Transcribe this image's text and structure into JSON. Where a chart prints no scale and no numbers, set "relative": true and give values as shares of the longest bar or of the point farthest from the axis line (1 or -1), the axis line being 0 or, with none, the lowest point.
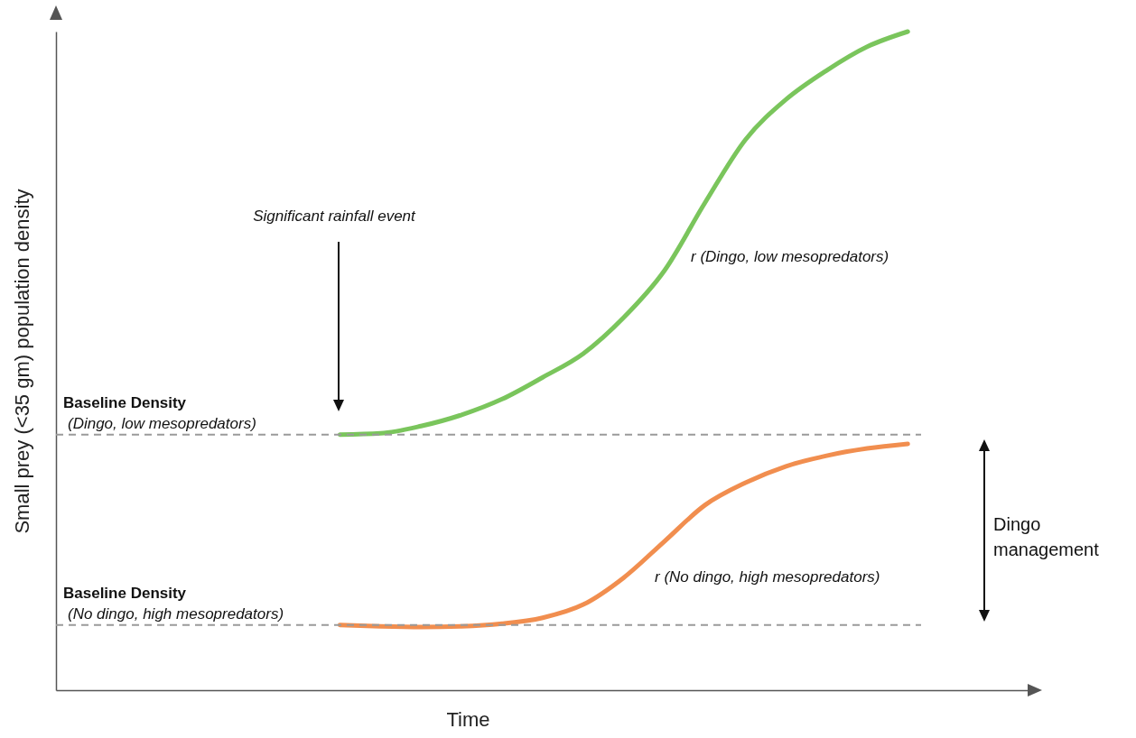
{
  "chart_data": {
    "type": "line",
    "relative": true,
    "xlabel": "Time",
    "ylabel": "Small prey (<35 gm) population density",
    "categories": [
      null,
      null,
      null,
      null,
      null,
      null,
      null,
      null,
      null,
      null,
      null,
      null,
      null,
      null,
      null,
      null,
      null,
      null,
      null,
      null,
      null,
      null,
      null,
      null,
      null
    ],
    "series": [
      {
        "name": "r (Dingo, low mesopredators)",
        "color": "#6cbf4a",
        "values": [
          null,
          null,
          null,
          null,
          null,
          null,
          null,
          0.388,
          0.39,
          0.401,
          0.418,
          0.442,
          0.475,
          0.511,
          0.566,
          0.637,
          0.74,
          0.836,
          0.897,
          0.941,
          0.977,
          1.0,
          null,
          null,
          null
        ]
      },
      {
        "name": "r (No dingo, high mesopredators)",
        "color": "#f0823c",
        "values": [
          null,
          null,
          null,
          null,
          null,
          null,
          null,
          0.099,
          0.097,
          0.096,
          0.097,
          0.101,
          0.11,
          0.13,
          0.171,
          0.226,
          0.281,
          0.315,
          0.34,
          0.356,
          0.367,
          0.374,
          null,
          null,
          null
        ]
      }
    ],
    "ref_lines": [
      {
        "axis": "y",
        "value": 0.388,
        "label": "Baseline Density",
        "color": "#9a9a9a",
        "line_style": "dashed"
      },
      {
        "axis": "y",
        "value": 0.099,
        "label": "Baseline Density",
        "color": "#9a9a9a",
        "line_style": "dashed"
      }
    ],
    "annotations": [
      "(Dingo, low mesopredators)",
      "(No dingo, high mesopredators)",
      "Significant rainfall event",
      "Dingo management"
    ]
  }
}
